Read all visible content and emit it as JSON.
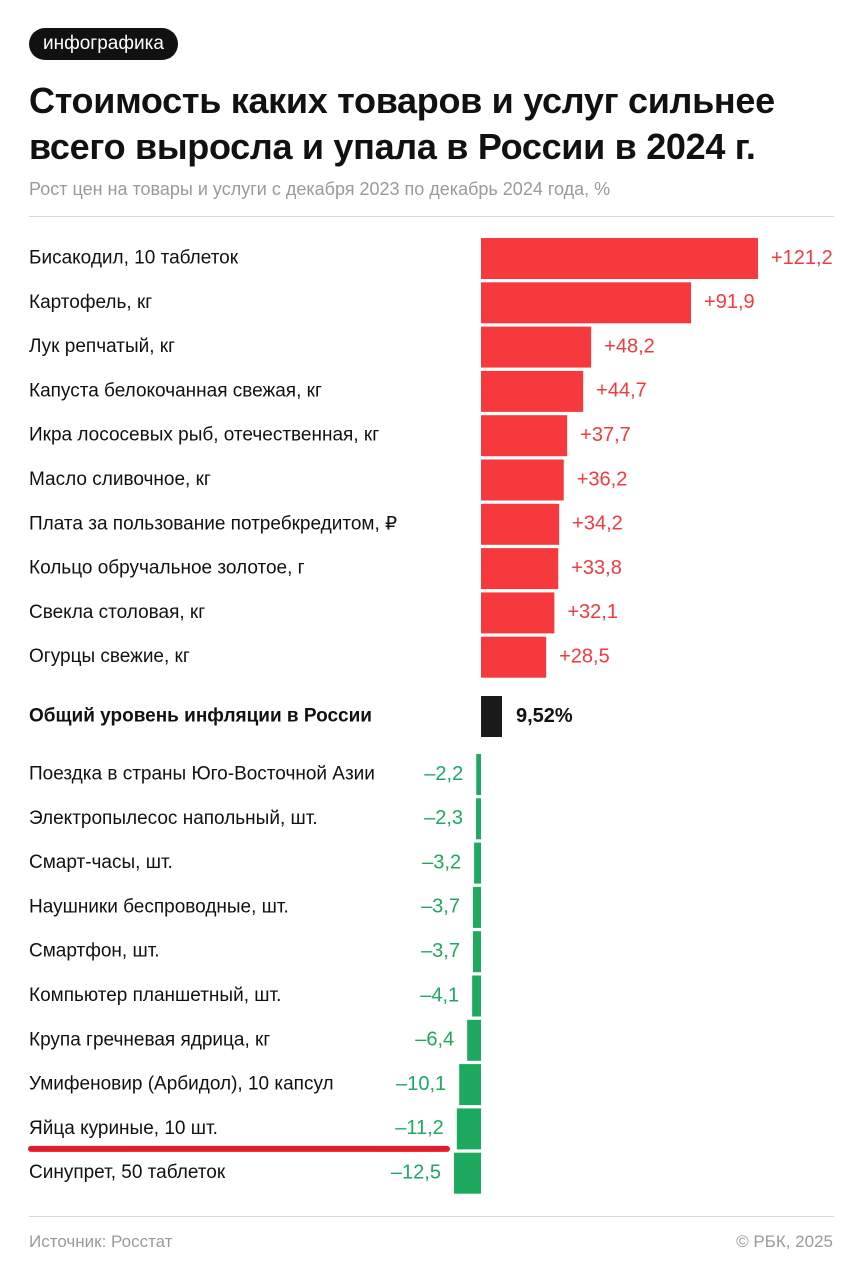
{
  "badge": "инфографика",
  "header": {
    "title": "Стоимость каких товаров и услуг сильнее всего выросла и упала в России в 2024 г.",
    "subtitle": "Рост цен на товары и услуги с декабря 2023 по декабрь 2024 года, %"
  },
  "footer": {
    "source": "Источник: Росстат",
    "copyright": "© РБК, 2025"
  },
  "colors": {
    "increase": "#f5393c",
    "decrease": "#1daa5e",
    "inflation": "#1a1a1a",
    "highlight_underline": "#e41b2b"
  },
  "chart_data": {
    "type": "bar",
    "orientation": "horizontal",
    "unit": "%",
    "increases": [
      {
        "label": "Бисакодил, 10 таблеток",
        "value": 121.2,
        "value_label": "+121,2"
      },
      {
        "label": "Картофель, кг",
        "value": 91.9,
        "value_label": "+91,9"
      },
      {
        "label": "Лук репчатый, кг",
        "value": 48.2,
        "value_label": "+48,2"
      },
      {
        "label": "Капуста белокочанная свежая, кг",
        "value": 44.7,
        "value_label": "+44,7"
      },
      {
        "label": "Икра лососевых рыб, отечественная, кг",
        "value": 37.7,
        "value_label": "+37,7"
      },
      {
        "label": "Масло сливочное, кг",
        "value": 36.2,
        "value_label": "+36,2"
      },
      {
        "label": "Плата за пользование потребкредитом, ₽",
        "value": 34.2,
        "value_label": "+34,2"
      },
      {
        "label": "Кольцо обручальное золотое, г",
        "value": 33.8,
        "value_label": "+33,8"
      },
      {
        "label": "Свекла столовая, кг",
        "value": 32.1,
        "value_label": "+32,1"
      },
      {
        "label": "Огурцы свежие, кг",
        "value": 28.5,
        "value_label": "+28,5"
      }
    ],
    "inflation": {
      "label": "Общий уровень инфляции в России",
      "value": 9.52,
      "value_label": "9,52%"
    },
    "decreases": [
      {
        "label": "Поездка в страны Юго-Восточной Азии",
        "value": -2.2,
        "value_label": "–2,2"
      },
      {
        "label": "Электропылесос напольный, шт.",
        "value": -2.3,
        "value_label": "–2,3"
      },
      {
        "label": "Смарт-часы, шт.",
        "value": -3.2,
        "value_label": "–3,2"
      },
      {
        "label": "Наушники беспроводные, шт.",
        "value": -3.7,
        "value_label": "–3,7"
      },
      {
        "label": "Смартфон, шт.",
        "value": -3.7,
        "value_label": "–3,7"
      },
      {
        "label": "Компьютер планшетный, шт.",
        "value": -4.1,
        "value_label": "–4,1"
      },
      {
        "label": "Крупа гречневая ядрица, кг",
        "value": -6.4,
        "value_label": "–6,4"
      },
      {
        "label": "Умифеновир (Арбидол), 10 капсул",
        "value": -10.1,
        "value_label": "–10,1"
      },
      {
        "label": "Яйца куриные, 10 шт.",
        "value": -11.2,
        "value_label": "–11,2",
        "highlighted": true
      },
      {
        "label": "Синупрет, 50 таблеток",
        "value": -12.5,
        "value_label": "–12,5"
      }
    ]
  }
}
